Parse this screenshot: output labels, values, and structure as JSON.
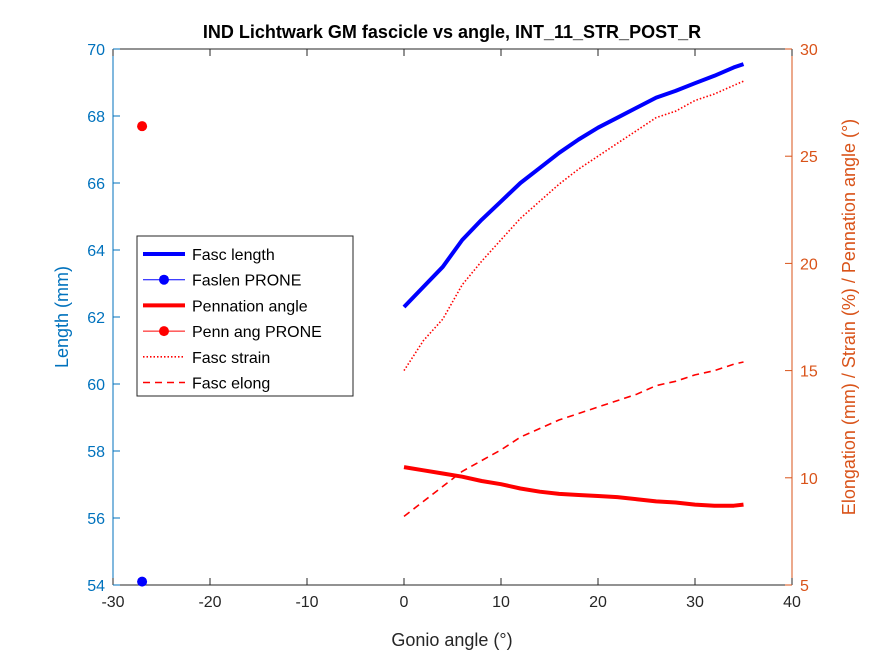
{
  "chart_data": {
    "type": "line",
    "title": "IND Lichtwark GM fascicle vs angle, INT_11_STR_POST_R",
    "xlabel": "Gonio angle (°)",
    "ylabel_left": "Length (mm)",
    "ylabel_right": "Elongation (mm) / Strain (%) / Pennation angle (°)",
    "xlim": [
      -30,
      40
    ],
    "ylim_left": [
      54,
      70
    ],
    "ylim_right": [
      5,
      30
    ],
    "xticks": [
      "-30",
      "-20",
      "-10",
      "0",
      "10",
      "20",
      "30",
      "40"
    ],
    "yticks_left": [
      "54",
      "56",
      "58",
      "60",
      "62",
      "64",
      "66",
      "68",
      "70"
    ],
    "yticks_right": [
      "5",
      "10",
      "15",
      "20",
      "25",
      "30"
    ],
    "grid": false,
    "legend_position": "left-middle",
    "colors": {
      "left_axis": "#0072BD",
      "right_axis": "#D95319",
      "fasc_length": "#0000FF",
      "red_series": "#FF0000"
    },
    "series": [
      {
        "name": "Fasc length",
        "axis": "left",
        "style": "solid-thick",
        "color": "#0000FF",
        "x": [
          0,
          2,
          4,
          6,
          8,
          10,
          12,
          14,
          16,
          18,
          20,
          22,
          24,
          26,
          28,
          30,
          32,
          34,
          35
        ],
        "y": [
          62.3,
          62.9,
          63.5,
          64.3,
          64.9,
          65.45,
          66.0,
          66.45,
          66.9,
          67.3,
          67.65,
          67.95,
          68.25,
          68.55,
          68.75,
          68.98,
          69.2,
          69.45,
          69.55
        ]
      },
      {
        "name": "Faslen PRONE",
        "axis": "left",
        "style": "marker",
        "color": "#0000FF",
        "x": [
          -27
        ],
        "y": [
          54.1
        ]
      },
      {
        "name": "Pennation angle",
        "axis": "right",
        "style": "solid-thick",
        "color": "#FF0000",
        "x": [
          0,
          2,
          4,
          6,
          8,
          10,
          12,
          14,
          16,
          18,
          20,
          22,
          24,
          26,
          28,
          30,
          32,
          34,
          35
        ],
        "y": [
          10.5,
          10.35,
          10.2,
          10.05,
          9.85,
          9.7,
          9.5,
          9.35,
          9.25,
          9.2,
          9.15,
          9.1,
          9.0,
          8.9,
          8.85,
          8.75,
          8.7,
          8.7,
          8.75
        ]
      },
      {
        "name": "Penn ang PRONE",
        "axis": "right",
        "style": "marker",
        "color": "#FF0000",
        "x": [
          -27
        ],
        "y": [
          26.4
        ]
      },
      {
        "name": "Fasc strain",
        "axis": "right",
        "style": "dotted",
        "color": "#FF0000",
        "x": [
          0,
          2,
          4,
          6,
          8,
          10,
          12,
          14,
          16,
          18,
          20,
          22,
          24,
          26,
          28,
          30,
          32,
          34,
          35
        ],
        "y": [
          15.0,
          16.4,
          17.4,
          19.0,
          20.1,
          21.1,
          22.1,
          22.9,
          23.7,
          24.4,
          25.0,
          25.6,
          26.2,
          26.8,
          27.1,
          27.6,
          27.9,
          28.3,
          28.5
        ]
      },
      {
        "name": "Fasc elong",
        "axis": "right",
        "style": "dashed",
        "color": "#FF0000",
        "x": [
          0,
          2,
          4,
          6,
          8,
          10,
          12,
          14,
          16,
          18,
          20,
          22,
          24,
          26,
          28,
          30,
          32,
          34,
          35
        ],
        "y": [
          8.2,
          8.9,
          9.6,
          10.3,
          10.8,
          11.3,
          11.9,
          12.3,
          12.7,
          13.0,
          13.3,
          13.6,
          13.9,
          14.3,
          14.5,
          14.8,
          15.0,
          15.3,
          15.4
        ]
      }
    ]
  }
}
